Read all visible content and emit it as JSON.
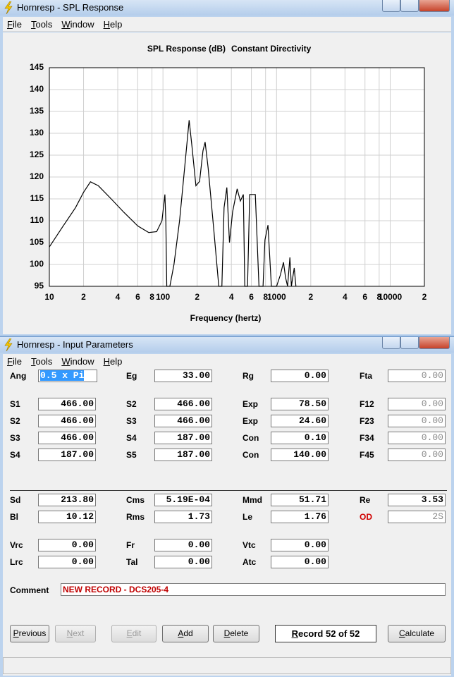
{
  "windows": [
    {
      "title": "Hornresp - SPL Response",
      "menu": [
        "File",
        "Tools",
        "Window",
        "Help"
      ]
    },
    {
      "title": "Hornresp - Input Parameters",
      "menu": [
        "File",
        "Tools",
        "Window",
        "Help"
      ]
    }
  ],
  "chart_data": {
    "type": "line",
    "title": "SPL Response (dB)",
    "subtitle": "Constant Directivity",
    "x_label": "Frequency (hertz)",
    "x_log": true,
    "grid": true,
    "color": "#000000",
    "xlim": [
      10,
      20000
    ],
    "ylim": [
      95,
      145
    ],
    "xticks": [
      10,
      {
        "value": 20,
        "label": "2"
      },
      {
        "value": 40,
        "label": "4"
      },
      {
        "value": 60,
        "label": "6"
      },
      {
        "value": 80,
        "label": "8"
      },
      100,
      {
        "value": 200,
        "label": "2"
      },
      {
        "value": 400,
        "label": "4"
      },
      {
        "value": 600,
        "label": "6"
      },
      {
        "value": 800,
        "label": "8"
      },
      1000,
      {
        "value": 2000,
        "label": "2"
      },
      {
        "value": 4000,
        "label": "4"
      },
      {
        "value": 6000,
        "label": "6"
      },
      {
        "value": 8000,
        "label": "8"
      },
      10000,
      {
        "value": 20000,
        "label": "2"
      }
    ],
    "yticks": [
      95,
      100,
      105,
      110,
      115,
      120,
      125,
      130,
      135,
      140,
      145
    ],
    "x": [
      10,
      13,
      17,
      20,
      23,
      27,
      35,
      45,
      60,
      75,
      88,
      98,
      104,
      106,
      108,
      115,
      125,
      140,
      155,
      170,
      180,
      195,
      210,
      225,
      235,
      250,
      280,
      310,
      330,
      345,
      365,
      385,
      410,
      450,
      480,
      510,
      525,
      555,
      580,
      650,
      700,
      760,
      790,
      840,
      900,
      1000,
      1080,
      1150,
      1200,
      1250,
      1310,
      1350,
      1430,
      1480
    ],
    "values": [
      104,
      108.5,
      113,
      116.5,
      118.9,
      118,
      115,
      112,
      108.8,
      107.3,
      107.5,
      110,
      116,
      110,
      95,
      95,
      100,
      110,
      122,
      133,
      127,
      118,
      119,
      126,
      128,
      122,
      108,
      95,
      95,
      113,
      117.6,
      105,
      112,
      117.3,
      114.5,
      116,
      95,
      95,
      116,
      116,
      95,
      95,
      105.6,
      109,
      95,
      95,
      97.6,
      100.5,
      97,
      95,
      101.6,
      95,
      99.2,
      95
    ]
  },
  "parameters": {
    "rows": [
      [
        {
          "label": "Ang",
          "value": "0.5 x Pi"
        },
        {
          "label": "Eg",
          "value": "33.00"
        },
        {
          "label": "Rg",
          "value": "0.00"
        },
        {
          "label": "Fta",
          "value": "0.00"
        }
      ],
      [
        {
          "label": "S1",
          "value": "466.00"
        },
        {
          "label": "S2",
          "value": "466.00"
        },
        {
          "label": "Exp",
          "value": "78.50"
        },
        {
          "label": "F12",
          "value": "0.00"
        }
      ],
      [
        {
          "label": "S2",
          "value": "466.00"
        },
        {
          "label": "S3",
          "value": "466.00"
        },
        {
          "label": "Exp",
          "value": "24.60"
        },
        {
          "label": "F23",
          "value": "0.00"
        }
      ],
      [
        {
          "label": "S3",
          "value": "466.00"
        },
        {
          "label": "S4",
          "value": "187.00"
        },
        {
          "label": "Con",
          "value": "0.10"
        },
        {
          "label": "F34",
          "value": "0.00"
        }
      ],
      [
        {
          "label": "S4",
          "value": "187.00"
        },
        {
          "label": "S5",
          "value": "187.00"
        },
        {
          "label": "Con",
          "value": "140.00"
        },
        {
          "label": "F45",
          "value": "0.00"
        }
      ],
      [
        {
          "label": "Sd",
          "value": "213.80"
        },
        {
          "label": "Cms",
          "value": "5.19E-04"
        },
        {
          "label": "Mmd",
          "value": "51.71"
        },
        {
          "label": "Re",
          "value": "3.53"
        }
      ],
      [
        {
          "label": "Bl",
          "value": "10.12"
        },
        {
          "label": "Rms",
          "value": "1.73"
        },
        {
          "label": "Le",
          "value": "1.76"
        },
        {
          "label": "OD",
          "value": "2S"
        }
      ],
      [
        {
          "label": "Vrc",
          "value": "0.00"
        },
        {
          "label": "Fr",
          "value": "0.00"
        },
        {
          "label": "Vtc",
          "value": "0.00"
        }
      ],
      [
        {
          "label": "Lrc",
          "value": "0.00"
        },
        {
          "label": "Tal",
          "value": "0.00"
        },
        {
          "label": "Atc",
          "value": "0.00"
        }
      ]
    ],
    "comment_label": "Comment",
    "comment": "NEW RECORD - DCS205-4",
    "buttons": [
      "Previous",
      "Next",
      "Edit",
      "Add",
      "Delete"
    ],
    "record": "Record 52 of 52",
    "calculate": "Calculate"
  }
}
